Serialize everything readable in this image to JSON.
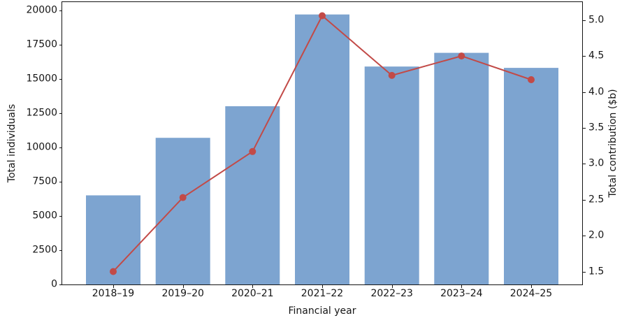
{
  "chart_data": {
    "type": "bar",
    "subtype": "dual-axis bar + line combo",
    "categories": [
      "2018–19",
      "2019–20",
      "2020–21",
      "2021–22",
      "2022–23",
      "2023–24",
      "2024–25"
    ],
    "series": [
      {
        "name": "Total individuals",
        "type": "bar",
        "axis": "left",
        "values": [
          6500,
          10700,
          13000,
          19700,
          15900,
          16900,
          15800
        ],
        "color": "#7da4d0"
      },
      {
        "name": "Total contribution ($b)",
        "type": "line",
        "axis": "right",
        "values": [
          1.5,
          2.53,
          3.17,
          5.06,
          4.23,
          4.5,
          4.17
        ],
        "color": "#c24a47",
        "marker": "circle"
      }
    ],
    "title": "",
    "xlabel": "Financial year",
    "ylabel_left": "Total individuals",
    "ylabel_right": "Total contribution ($b)",
    "ylim_left": [
      0,
      20600
    ],
    "ylim_right": [
      1.32,
      5.25
    ],
    "yticks_left": [
      0,
      2500,
      5000,
      7500,
      10000,
      12500,
      15000,
      17500,
      20000
    ],
    "yticks_right": [
      1.5,
      2.0,
      2.5,
      3.0,
      3.5,
      4.0,
      4.5,
      5.0
    ],
    "grid": false,
    "legend": "none",
    "spine_color": "#141414",
    "background": "#ffffff"
  }
}
